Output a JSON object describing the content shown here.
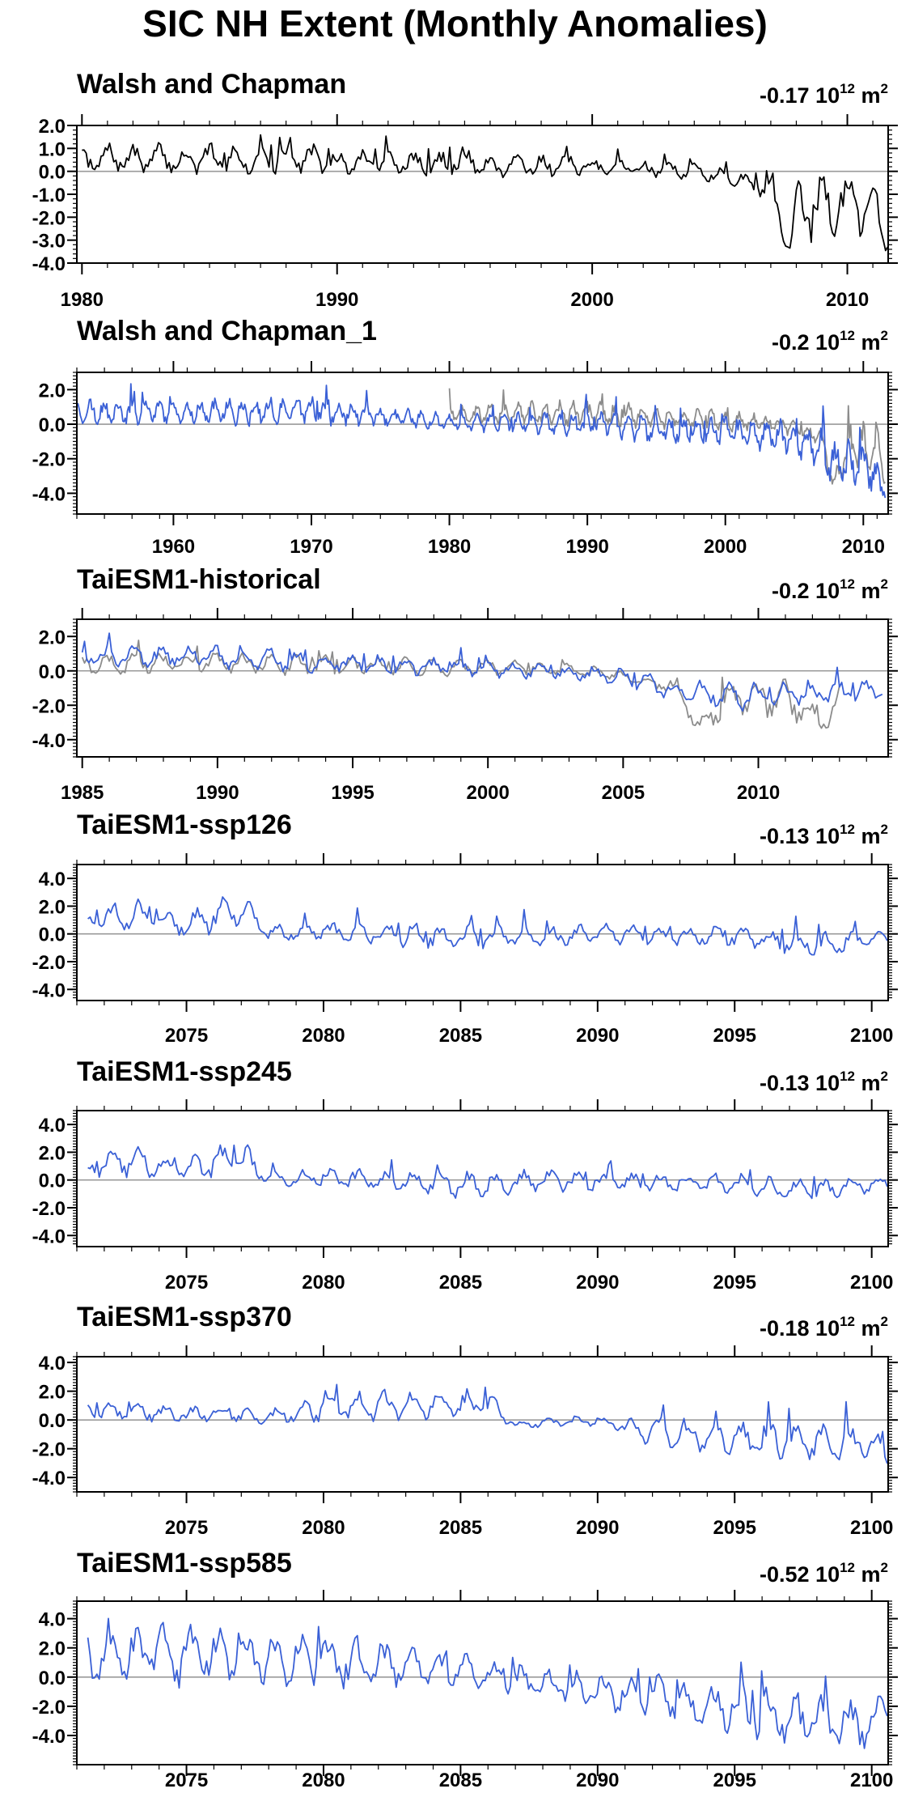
{
  "title": "SIC NH Extent (Monthly Anomalies)",
  "colors": {
    "obs": "#000000",
    "obs_overlay": "#8c8c8c",
    "model": "#3a60d6",
    "zero_line": "#9a9a9a",
    "axis": "#000000"
  },
  "chart_data": [
    {
      "type": "line",
      "title": "Walsh and Chapman",
      "trend": "-0.17",
      "unit_text": "10",
      "unit_exp": "12",
      "unit_suffix": "m",
      "unit_suffix_exp": "2",
      "xlim": [
        1979.8,
        2011.6
      ],
      "ylim": [
        -4.0,
        2.0
      ],
      "xticks": [
        1980,
        1990,
        2000,
        2010
      ],
      "yticks": [
        2.0,
        1.0,
        0.0,
        -1.0,
        -2.0,
        -3.0,
        -4.0
      ],
      "yticklabels": [
        "2.0",
        "1.0",
        "0.0",
        "-1.0",
        "-2.0",
        "-3.0",
        "-4.0"
      ],
      "series": [
        {
          "role": "obs",
          "start": 1980.0,
          "end": 2011.6,
          "x": [
            1980.0,
            1981.0,
            1982.0,
            1983.0,
            1984.0,
            1985.0,
            1986.0,
            1987.0,
            1988.0,
            1989.0,
            1990.0,
            1991.0,
            1992.0,
            1993.0,
            1994.0,
            1995.0,
            1996.0,
            1997.0,
            1998.0,
            1999.0,
            2000.0,
            2001.0,
            2002.0,
            2003.0,
            2004.0,
            2005.0,
            2006.0,
            2007.0,
            2007.8,
            2008.0,
            2009.0,
            2010.0,
            2011.0,
            2011.6
          ],
          "y": [
            0.3,
            0.6,
            0.5,
            0.6,
            0.4,
            0.6,
            0.5,
            0.5,
            0.5,
            0.6,
            0.3,
            0.4,
            0.5,
            0.3,
            0.3,
            0.5,
            0.2,
            0.4,
            0.2,
            0.3,
            0.2,
            0.2,
            0.1,
            0.1,
            0.0,
            -0.2,
            -0.4,
            -0.8,
            -3.5,
            -1.5,
            -1.5,
            -1.2,
            -1.5,
            -3.0
          ],
          "amp": [
            0.5,
            0.5,
            0.5,
            0.5,
            0.5,
            0.5,
            0.5,
            0.5,
            0.5,
            0.5,
            0.5,
            0.5,
            0.5,
            0.5,
            0.5,
            0.5,
            0.5,
            0.5,
            0.4,
            0.4,
            0.3,
            0.3,
            0.3,
            0.3,
            0.3,
            0.3,
            0.3,
            0.5,
            0.4,
            1.2,
            1.3,
            1.3,
            1.2,
            0.4
          ]
        }
      ]
    },
    {
      "type": "line",
      "title": "Walsh and Chapman_1",
      "trend": "-0.2",
      "unit_text": "10",
      "unit_exp": "12",
      "unit_suffix": "m",
      "unit_suffix_exp": "2",
      "xlim": [
        1953.0,
        2011.8
      ],
      "ylim": [
        -5.2,
        3.0
      ],
      "xticks": [
        1960,
        1970,
        1980,
        1990,
        2000,
        2010
      ],
      "yticks": [
        2.0,
        0.0,
        -2.0,
        -4.0
      ],
      "yticklabels": [
        "2.0",
        "0.0",
        "-2.0",
        "-4.0"
      ],
      "series": [
        {
          "role": "obs_overlay",
          "start": 1980.0,
          "end": 2011.6,
          "x": [
            1980.0,
            1985.0,
            1990.0,
            1995.0,
            2000.0,
            2003.0,
            2005.0,
            2007.0,
            2007.8,
            2009.0,
            2011.0,
            2011.6
          ],
          "y": [
            0.5,
            0.6,
            0.6,
            0.4,
            0.2,
            0.1,
            -0.2,
            -0.8,
            -3.5,
            -1.4,
            -1.4,
            -3.0
          ],
          "amp": [
            0.6,
            0.6,
            0.6,
            0.6,
            0.5,
            0.4,
            0.4,
            0.5,
            0.4,
            1.2,
            1.2,
            0.4
          ]
        },
        {
          "role": "model",
          "start": 1953.0,
          "end": 2011.6,
          "x": [
            1953.0,
            1960.0,
            1970.0,
            1975.0,
            1980.0,
            1985.0,
            1990.0,
            1995.0,
            2000.0,
            2005.0,
            2007.0,
            2008.0,
            2010.0,
            2011.6
          ],
          "y": [
            0.7,
            0.7,
            0.8,
            0.5,
            0.1,
            0.1,
            0.0,
            -0.3,
            -0.4,
            -0.8,
            -1.5,
            -2.5,
            -2.2,
            -3.8
          ],
          "amp": [
            0.6,
            0.6,
            0.7,
            0.5,
            0.4,
            0.5,
            0.6,
            0.7,
            0.7,
            0.8,
            1.0,
            1.2,
            1.2,
            0.5
          ]
        }
      ]
    },
    {
      "type": "line",
      "title": "TaiESM1-historical",
      "trend": "-0.2",
      "unit_text": "10",
      "unit_exp": "12",
      "unit_suffix": "m",
      "unit_suffix_exp": "2",
      "xlim": [
        1984.8,
        2014.8
      ],
      "ylim": [
        -5.0,
        3.0
      ],
      "xticks": [
        1985,
        1990,
        1995,
        2000,
        2005,
        2010
      ],
      "yticks": [
        2.0,
        0.0,
        -2.0,
        -4.0
      ],
      "yticklabels": [
        "2.0",
        "0.0",
        "-2.0",
        "-4.0"
      ],
      "series": [
        {
          "role": "obs_overlay",
          "start": 1985.0,
          "end": 2013.0,
          "x": [
            1985.0,
            1990.0,
            1995.0,
            2000.0,
            2003.0,
            2005.0,
            2007.0,
            2007.8,
            2009.0,
            2011.0,
            2012.5,
            2013.0
          ],
          "y": [
            0.4,
            0.5,
            0.3,
            0.2,
            0.1,
            -0.3,
            -1.0,
            -3.3,
            -1.5,
            -1.6,
            -3.0,
            -1.8
          ],
          "amp": [
            0.5,
            0.5,
            0.5,
            0.4,
            0.3,
            0.3,
            0.5,
            0.4,
            1.1,
            1.1,
            0.4,
            0.8
          ]
        },
        {
          "role": "model",
          "start": 1985.0,
          "end": 2014.6,
          "x": [
            1985.0,
            1990.0,
            1995.0,
            2000.0,
            2005.0,
            2007.0,
            2010.0,
            2014.6
          ],
          "y": [
            0.8,
            0.9,
            0.4,
            0.1,
            -0.3,
            -1.2,
            -1.5,
            -1.0
          ],
          "amp": [
            0.5,
            0.6,
            0.5,
            0.4,
            0.4,
            0.6,
            0.7,
            0.6
          ]
        }
      ]
    },
    {
      "type": "line",
      "title": "TaiESM1-ssp126",
      "trend": "-0.13",
      "unit_text": "10",
      "unit_exp": "12",
      "unit_suffix": "m",
      "unit_suffix_exp": "2",
      "xlim": [
        2071.0,
        2100.6
      ],
      "ylim": [
        -4.8,
        5.0
      ],
      "xticks": [
        2075,
        2080,
        2085,
        2090,
        2095,
        2100
      ],
      "yticks": [
        4.0,
        2.0,
        0.0,
        -2.0,
        -4.0
      ],
      "yticklabels": [
        "4.0",
        "2.0",
        "0.0",
        "-2.0",
        "-4.0"
      ],
      "series": [
        {
          "role": "model",
          "start": 2071.4,
          "end": 2100.6,
          "x": [
            2071.4,
            2073.0,
            2075.0,
            2077.0,
            2078.0,
            2080.0,
            2085.0,
            2090.0,
            2095.0,
            2098.0,
            2100.6
          ],
          "y": [
            0.8,
            1.5,
            0.7,
            1.8,
            0.0,
            0.2,
            -0.3,
            0.0,
            -0.2,
            -0.8,
            -0.3
          ],
          "amp": [
            0.6,
            1.0,
            0.7,
            1.2,
            0.5,
            0.6,
            0.8,
            0.6,
            0.6,
            0.8,
            0.4
          ]
        }
      ]
    },
    {
      "type": "line",
      "title": "TaiESM1-ssp245",
      "trend": "-0.13",
      "unit_text": "10",
      "unit_exp": "12",
      "unit_suffix": "m",
      "unit_suffix_exp": "2",
      "xlim": [
        2071.0,
        2100.6
      ],
      "ylim": [
        -4.8,
        5.0
      ],
      "xticks": [
        2075,
        2080,
        2085,
        2090,
        2095,
        2100
      ],
      "yticks": [
        4.0,
        2.0,
        0.0,
        -2.0,
        -4.0
      ],
      "yticklabels": [
        "4.0",
        "2.0",
        "0.0",
        "-2.0",
        "-4.0"
      ],
      "series": [
        {
          "role": "model",
          "start": 2071.4,
          "end": 2100.6,
          "x": [
            2071.4,
            2073.0,
            2075.0,
            2077.0,
            2078.0,
            2080.0,
            2085.0,
            2090.0,
            2095.0,
            2098.0,
            2100.6
          ],
          "y": [
            0.8,
            1.4,
            0.7,
            1.8,
            0.0,
            0.2,
            -0.3,
            0.0,
            -0.3,
            -0.8,
            -0.2
          ],
          "amp": [
            0.6,
            1.0,
            0.7,
            1.2,
            0.5,
            0.6,
            0.8,
            0.6,
            0.6,
            0.8,
            0.4
          ]
        }
      ]
    },
    {
      "type": "line",
      "title": "TaiESM1-ssp370",
      "trend": "-0.18",
      "unit_text": "10",
      "unit_exp": "12",
      "unit_suffix": "m",
      "unit_suffix_exp": "2",
      "xlim": [
        2071.0,
        2100.6
      ],
      "ylim": [
        -5.0,
        4.4
      ],
      "xticks": [
        2075,
        2080,
        2085,
        2090,
        2095,
        2100
      ],
      "yticks": [
        4.0,
        2.0,
        0.0,
        -2.0,
        -4.0
      ],
      "yticklabels": [
        "4.0",
        "2.0",
        "0.0",
        "-2.0",
        "-4.0"
      ],
      "series": [
        {
          "role": "model",
          "start": 2071.4,
          "end": 2100.6,
          "x": [
            2071.4,
            2074.0,
            2076.0,
            2078.0,
            2080.0,
            2084.0,
            2086.0,
            2087.0,
            2090.0,
            2092.0,
            2095.0,
            2098.0,
            2100.6
          ],
          "y": [
            0.6,
            0.5,
            0.4,
            0.2,
            0.8,
            1.2,
            1.0,
            -0.3,
            0.0,
            -0.8,
            -1.2,
            -1.5,
            -2.0
          ],
          "amp": [
            0.5,
            0.6,
            0.5,
            0.4,
            0.8,
            1.0,
            0.8,
            0.3,
            0.3,
            0.8,
            1.0,
            1.2,
            1.2
          ]
        }
      ]
    },
    {
      "type": "line",
      "title": "TaiESM1-ssp585",
      "trend": "-0.52",
      "unit_text": "10",
      "unit_exp": "12",
      "unit_suffix": "m",
      "unit_suffix_exp": "2",
      "xlim": [
        2071.0,
        2100.6
      ],
      "ylim": [
        -6.0,
        5.2
      ],
      "xticks": [
        2075,
        2080,
        2085,
        2090,
        2095,
        2100
      ],
      "yticks": [
        4.0,
        2.0,
        0.0,
        -2.0,
        -4.0
      ],
      "yticklabels": [
        "4.0",
        "2.0",
        "0.0",
        "-2.0",
        "-4.0"
      ],
      "series": [
        {
          "role": "model",
          "start": 2071.4,
          "end": 2100.6,
          "x": [
            2071.4,
            2075.0,
            2080.0,
            2085.0,
            2088.0,
            2090.0,
            2093.0,
            2096.0,
            2098.0,
            2100.0,
            2100.6
          ],
          "y": [
            1.8,
            1.6,
            1.2,
            0.4,
            -0.5,
            -0.9,
            -1.6,
            -2.5,
            -3.0,
            -3.3,
            -1.5
          ],
          "amp": [
            1.8,
            1.8,
            1.6,
            1.0,
            0.8,
            1.0,
            1.3,
            1.6,
            1.5,
            1.3,
            1.0
          ]
        }
      ]
    }
  ]
}
